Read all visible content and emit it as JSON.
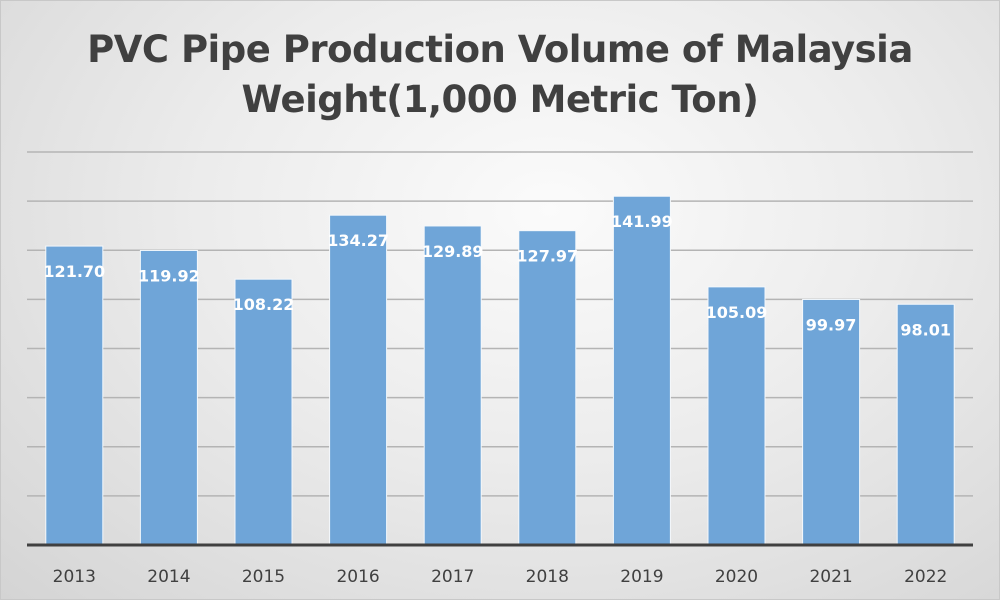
{
  "chart_data": {
    "type": "bar",
    "title": "PVC Pipe Production Volume  of Malaysia",
    "subtitle": "Weight(1,000 Metric Ton)",
    "xlabel": "",
    "ylabel": "",
    "categories": [
      "2013",
      "2014",
      "2015",
      "2016",
      "2017",
      "2018",
      "2019",
      "2020",
      "2021",
      "2022"
    ],
    "values": [
      121.7,
      119.92,
      108.22,
      134.27,
      129.89,
      127.97,
      141.99,
      105.09,
      99.97,
      98.01
    ],
    "data_labels": [
      "121.70",
      "119.92",
      "108.22",
      "134.27",
      "129.89",
      "127.97",
      "141.99",
      "105.09",
      "99.97",
      "98.01"
    ],
    "ylim": [
      0,
      160
    ],
    "grid_step": 20,
    "grid": true,
    "y_tick_labels_visible": false,
    "legend": "none",
    "colors": {
      "bar": "#6fa5d8",
      "label": "#ffffff",
      "axis": "#404040",
      "grid": "#b4b4b4"
    }
  }
}
